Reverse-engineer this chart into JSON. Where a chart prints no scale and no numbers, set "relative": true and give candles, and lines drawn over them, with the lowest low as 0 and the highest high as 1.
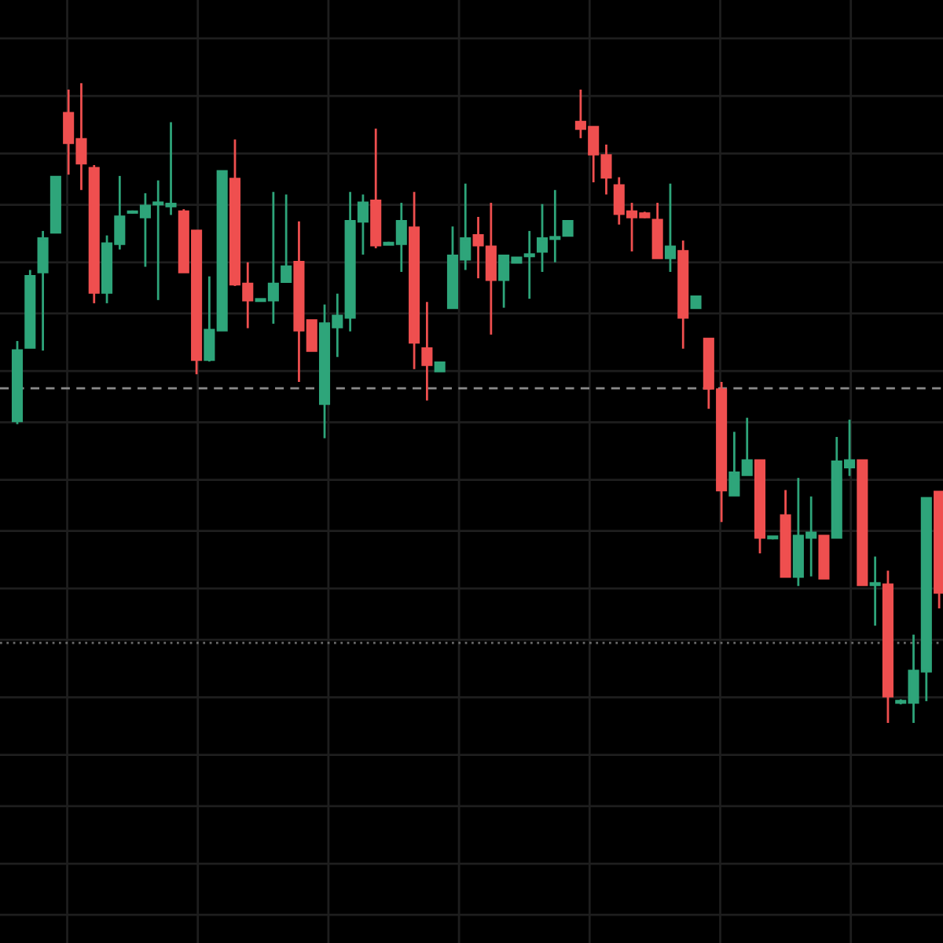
{
  "chart_data": {
    "type": "candlestick",
    "relative": true,
    "grid": true,
    "categories": [
      null,
      null,
      null,
      null,
      null,
      null,
      null,
      null,
      null,
      null,
      null,
      null,
      null,
      null,
      null,
      null,
      null,
      null,
      null,
      null,
      null,
      null,
      null,
      null,
      null,
      null,
      null,
      null,
      null,
      null,
      null,
      null,
      null,
      null,
      null,
      null,
      null,
      null,
      null,
      null,
      null,
      null,
      null,
      null,
      null,
      null,
      null,
      null,
      null,
      null,
      null,
      null,
      null,
      null,
      null,
      null,
      null,
      null,
      null,
      null,
      null,
      null,
      null,
      null,
      null,
      null,
      null,
      null,
      null,
      null,
      null,
      null,
      null
    ],
    "series": [
      {
        "colors": [
          "#2ea57a",
          "#2ea57a",
          "#2ea57a",
          "#2ea57a",
          "#ef4f4f",
          "#ef4f4f",
          "#ef4f4f",
          "#2ea57a",
          "#2ea57a",
          "#2ea57a",
          "#2ea57a",
          "#2ea57a",
          "#2ea57a",
          "#ef4f4f",
          "#ef4f4f",
          "#2ea57a",
          "#2ea57a",
          "#ef4f4f",
          "#ef4f4f",
          "#2ea57a",
          "#2ea57a",
          "#2ea57a",
          "#ef4f4f",
          "#ef4f4f",
          "#2ea57a",
          "#2ea57a",
          "#2ea57a",
          "#2ea57a",
          "#ef4f4f",
          "#2ea57a",
          "#2ea57a",
          "#ef4f4f",
          "#ef4f4f",
          "#2ea57a",
          "#2ea57a",
          "#2ea57a",
          "#ef4f4f",
          "#ef4f4f",
          "#2ea57a",
          "#2ea57a",
          "#2ea57a",
          "#2ea57a",
          "#2ea57a",
          "#2ea57a",
          "#ef4f4f",
          "#ef4f4f",
          "#ef4f4f",
          "#ef4f4f",
          "#ef4f4f",
          "#ef4f4f",
          "#ef4f4f",
          "#2ea57a",
          "#ef4f4f",
          "#2ea57a",
          "#ef4f4f",
          "#ef4f4f",
          "#2ea57a",
          "#2ea57a",
          "#ef4f4f",
          "#2ea57a",
          "#ef4f4f",
          "#2ea57a",
          "#2ea57a",
          "#ef4f4f",
          "#2ea57a",
          "#2ea57a",
          "#ef4f4f",
          "#2ea57a",
          "#ef4f4f",
          "#2ea57a",
          "#2ea57a",
          "#2ea57a",
          "#ef4f4f"
        ],
        "ohlc": [
          [
            0.472,
            0.597,
            0.467,
            0.582
          ],
          [
            0.587,
            0.708,
            0.587,
            0.698
          ],
          [
            0.705,
            0.769,
            0.582,
            0.757
          ],
          [
            0.767,
            0.853,
            0.767,
            0.853
          ],
          [
            0.953,
            0.99,
            0.857,
            0.907
          ],
          [
            0.912,
            1.0,
            0.833,
            0.875
          ],
          [
            0.867,
            0.872,
            0.656,
            0.673
          ],
          [
            0.673,
            0.762,
            0.656,
            0.749
          ],
          [
            0.749,
            0.855,
            0.74,
            0.791
          ],
          [
            0.798,
            0.801,
            0.796,
            0.799
          ],
          [
            0.791,
            0.828,
            0.713,
            0.808
          ],
          [
            0.811,
            0.848,
            0.661,
            0.813
          ],
          [
            0.808,
            0.939,
            0.794,
            0.811
          ],
          [
            0.799,
            0.803,
            0.705,
            0.705
          ],
          [
            0.769,
            0.769,
            0.545,
            0.568
          ],
          [
            0.568,
            0.698,
            0.565,
            0.614
          ],
          [
            0.614,
            0.862,
            0.614,
            0.862
          ],
          [
            0.85,
            0.912,
            0.683,
            0.686
          ],
          [
            0.686,
            0.72,
            0.617,
            0.661
          ],
          [
            0.66,
            0.663,
            0.659,
            0.662
          ],
          [
            0.661,
            0.83,
            0.624,
            0.686
          ],
          [
            0.69,
            0.826,
            0.69,
            0.713
          ],
          [
            0.72,
            0.784,
            0.533,
            0.614
          ],
          [
            0.629,
            0.629,
            0.582,
            0.582
          ],
          [
            0.499,
            0.654,
            0.445,
            0.624
          ],
          [
            0.619,
            0.671,
            0.572,
            0.636
          ],
          [
            0.634,
            0.83,
            0.612,
            0.784
          ],
          [
            0.784,
            0.826,
            0.732,
            0.813
          ],
          [
            0.816,
            0.929,
            0.742,
            0.747
          ],
          [
            0.748,
            0.752,
            0.747,
            0.75
          ],
          [
            0.749,
            0.813,
            0.705,
            0.784
          ],
          [
            0.774,
            0.83,
            0.553,
            0.595
          ],
          [
            0.585,
            0.658,
            0.504,
            0.56
          ],
          [
            0.55,
            0.563,
            0.55,
            0.563
          ],
          [
            0.649,
            0.776,
            0.649,
            0.73
          ],
          [
            0.725,
            0.843,
            0.708,
            0.757
          ],
          [
            0.762,
            0.791,
            0.695,
            0.747
          ],
          [
            0.744,
            0.813,
            0.607,
            0.693
          ],
          [
            0.693,
            0.73,
            0.649,
            0.73
          ],
          [
            0.72,
            0.727,
            0.72,
            0.727
          ],
          [
            0.73,
            0.769,
            0.663,
            0.732
          ],
          [
            0.737,
            0.811,
            0.705,
            0.757
          ],
          [
            0.757,
            0.833,
            0.72,
            0.759
          ],
          [
            0.762,
            0.784,
            0.762,
            0.784
          ],
          [
            0.939,
            0.99,
            0.914,
            0.929
          ],
          [
            0.931,
            0.931,
            0.845,
            0.889
          ],
          [
            0.887,
            0.904,
            0.826,
            0.853
          ],
          [
            0.84,
            0.853,
            0.779,
            0.796
          ],
          [
            0.799,
            0.813,
            0.737,
            0.791
          ],
          [
            0.796,
            0.799,
            0.789,
            0.791
          ],
          [
            0.786,
            0.813,
            0.727,
            0.727
          ],
          [
            0.727,
            0.843,
            0.705,
            0.744
          ],
          [
            0.737,
            0.754,
            0.585,
            0.634
          ],
          [
            0.649,
            0.666,
            0.649,
            0.666
          ],
          [
            0.6,
            0.6,
            0.491,
            0.523
          ],
          [
            0.521,
            0.533,
            0.314,
            0.364
          ],
          [
            0.356,
            0.455,
            0.356,
            0.391
          ],
          [
            0.388,
            0.477,
            0.388,
            0.41
          ],
          [
            0.41,
            0.41,
            0.265,
            0.29
          ],
          [
            0.289,
            0.292,
            0.287,
            0.291
          ],
          [
            0.324,
            0.364,
            0.229,
            0.229
          ],
          [
            0.229,
            0.383,
            0.214,
            0.292
          ],
          [
            0.29,
            0.354,
            0.229,
            0.297
          ],
          [
            0.292,
            0.292,
            0.226,
            0.226
          ],
          [
            0.29,
            0.447,
            0.29,
            0.408
          ],
          [
            0.4,
            0.474,
            0.386,
            0.41
          ],
          [
            0.41,
            0.41,
            0.216,
            0.216
          ],
          [
            0.216,
            0.26,
            0.152,
            0.218
          ],
          [
            0.216,
            0.238,
            0.0,
            0.042
          ],
          [
            0.032,
            0.037,
            0.029,
            0.034
          ],
          [
            0.032,
            0.138,
            0.0,
            0.081
          ],
          [
            0.081,
            0.351,
            0.034,
            0.351
          ],
          [
            0.361,
            0.361,
            0.179,
            0.204
          ]
        ]
      }
    ],
    "ref_lines": [
      {
        "axis": "y",
        "value": 0.523,
        "color": "#8a8a8a",
        "line_style": "dashed"
      },
      {
        "axis": "y",
        "value": 0.125,
        "color": "#6a6a6a",
        "line_style": "dotted"
      }
    ]
  }
}
